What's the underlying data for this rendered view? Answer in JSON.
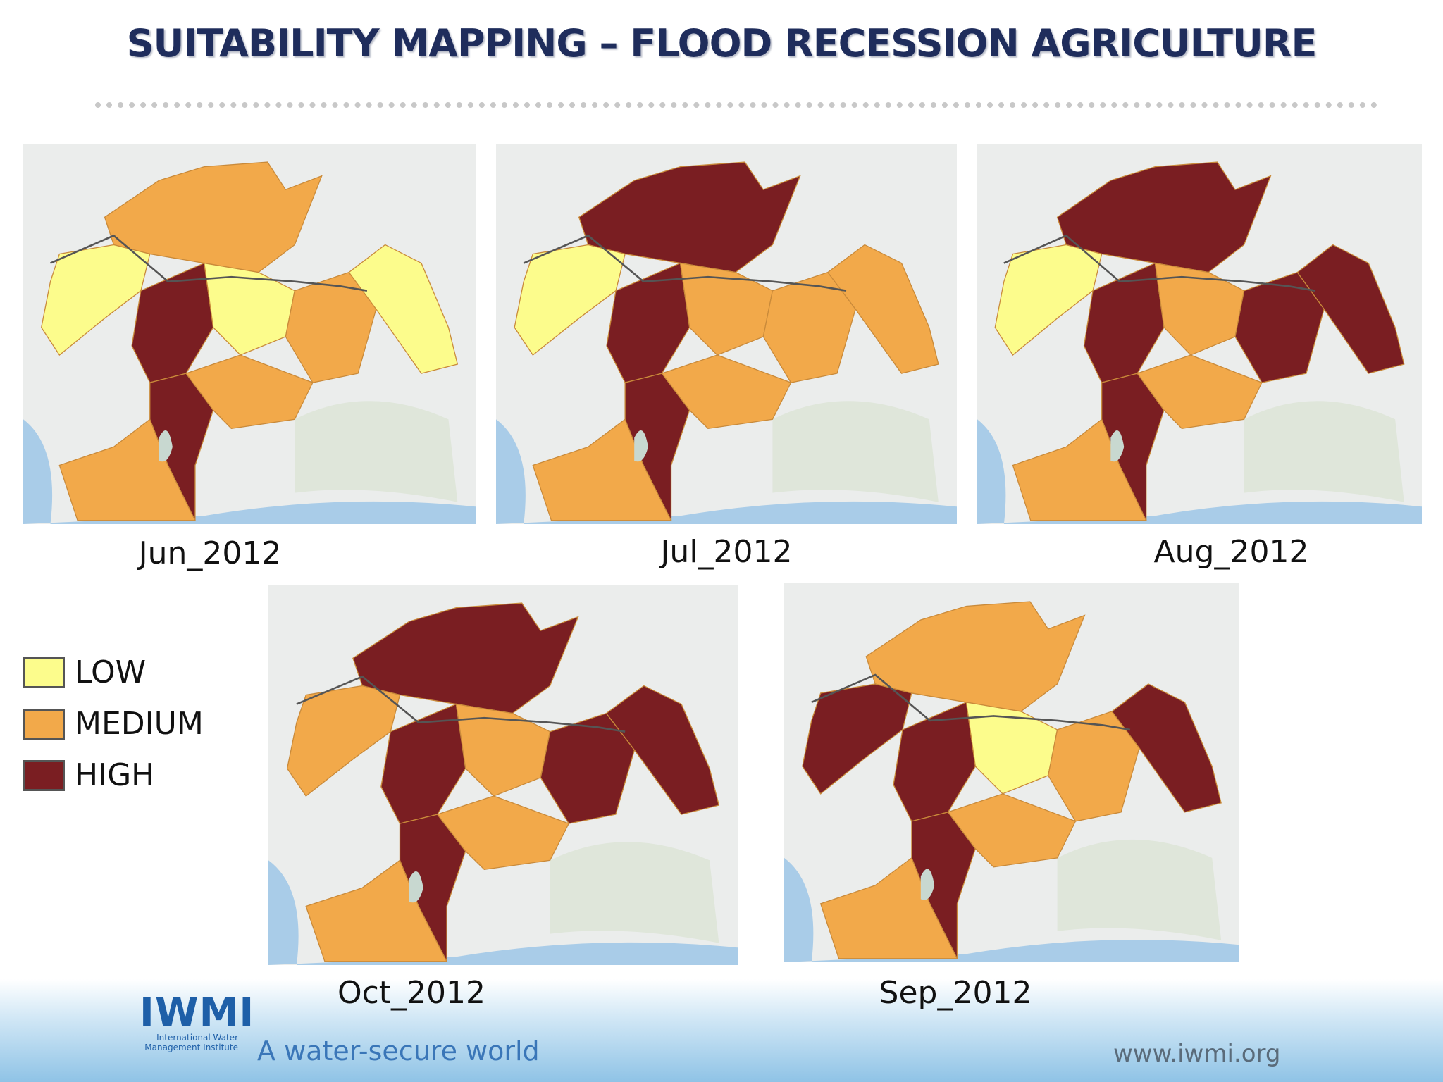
{
  "title": "SUITABILITY MAPPING – FLOOD RECESSION AGRICULTURE",
  "maps": [
    {
      "label": "Jun_2012"
    },
    {
      "label": "Jul_2012"
    },
    {
      "label": "Aug_2012"
    },
    {
      "label": "Oct_2012"
    },
    {
      "label": "Sep_2012"
    }
  ],
  "legend": [
    {
      "label": "LOW",
      "color": "#fcfc8c"
    },
    {
      "label": "MEDIUM",
      "color": "#f2a94a"
    },
    {
      "label": "HIGH",
      "color": "#7a1e22"
    }
  ],
  "footer": {
    "logo": "IWMI",
    "logo_subtitle": "International Water Management Institute",
    "tagline": "A water-secure world",
    "url": "www.iwmi.org"
  }
}
